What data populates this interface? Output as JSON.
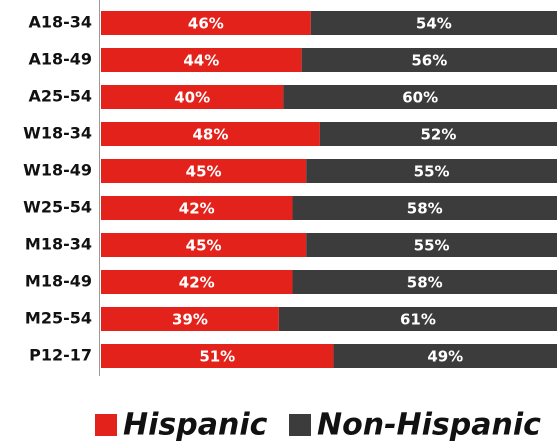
{
  "chart_data": {
    "type": "stacked-bar-horizontal",
    "categories": [
      "A18-34",
      "A18-49",
      "A25-54",
      "W18-34",
      "W18-49",
      "W25-54",
      "M18-34",
      "M18-49",
      "M25-54",
      "P12-17"
    ],
    "series": [
      {
        "name": "Hispanic",
        "color": "#e3231b",
        "values": [
          46,
          44,
          40,
          48,
          45,
          42,
          45,
          42,
          39,
          51
        ],
        "value_labels": [
          "46%",
          "44%",
          "40%",
          "48%",
          "45%",
          "42%",
          "45%",
          "42%",
          "39%",
          "51%"
        ]
      },
      {
        "name": "Non-Hispanic",
        "color": "#3c3c3c",
        "values": [
          54,
          56,
          60,
          52,
          55,
          58,
          55,
          58,
          61,
          49
        ],
        "value_labels": [
          "54%",
          "56%",
          "60%",
          "52%",
          "55%",
          "58%",
          "55%",
          "58%",
          "61%",
          "49%"
        ]
      }
    ],
    "xlim": [
      0,
      100
    ],
    "legend": "bottom"
  }
}
